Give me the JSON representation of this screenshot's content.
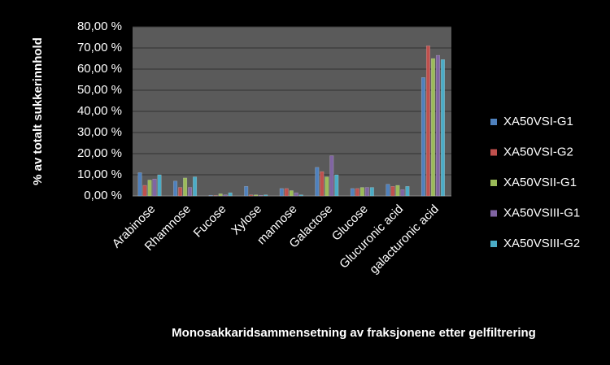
{
  "chart_data": {
    "type": "bar",
    "y_label": "% av totalt  sukkerinnhold",
    "x_label": "Monosakkaridsammensetning  av fraksjonene etter gelfiltrering",
    "categories": [
      "Arabinose",
      "Rhamnose",
      "Fucose",
      "Xylose",
      "mannose",
      "Galactose",
      "Glucose",
      "Glucuronic acid",
      "galacturonic acid"
    ],
    "series": [
      {
        "name": "XA50VSI-G1",
        "color": "#4f81bd",
        "values": [
          11,
          7,
          0.3,
          4.5,
          3.5,
          13.5,
          3.5,
          5.5,
          56
        ]
      },
      {
        "name": "XA50VSI-G2",
        "color": "#c0504d",
        "values": [
          5,
          4,
          0.2,
          0.5,
          3.5,
          11.5,
          3.5,
          4.5,
          71
        ]
      },
      {
        "name": "XA50VSII-G1",
        "color": "#9bbb59",
        "values": [
          7.5,
          8.5,
          1,
          0.5,
          2.5,
          9,
          4,
          5,
          65
        ]
      },
      {
        "name": "XA50VSIII-G1",
        "color": "#8064a2",
        "values": [
          8,
          4,
          0.5,
          0.3,
          1.5,
          19,
          4,
          3,
          66.5
        ]
      },
      {
        "name": "XA50VSIII-G2",
        "color": "#4bacc6",
        "values": [
          10,
          9,
          1.5,
          0.5,
          0.5,
          10,
          4,
          4.5,
          64.5
        ]
      }
    ],
    "ylim": [
      0,
      80
    ],
    "yticks": [
      {
        "value": 0,
        "label": "0,00 %"
      },
      {
        "value": 10,
        "label": "10,00 %"
      },
      {
        "value": 20,
        "label": "20,00 %"
      },
      {
        "value": 30,
        "label": "30,00 %"
      },
      {
        "value": 40,
        "label": "40,00 %"
      },
      {
        "value": 50,
        "label": "50,00 %"
      },
      {
        "value": 60,
        "label": "60,00 %"
      },
      {
        "value": 70,
        "label": "70,00 %"
      },
      {
        "value": 80,
        "label": "80,00 %"
      }
    ],
    "grid": true,
    "legend": "right"
  }
}
